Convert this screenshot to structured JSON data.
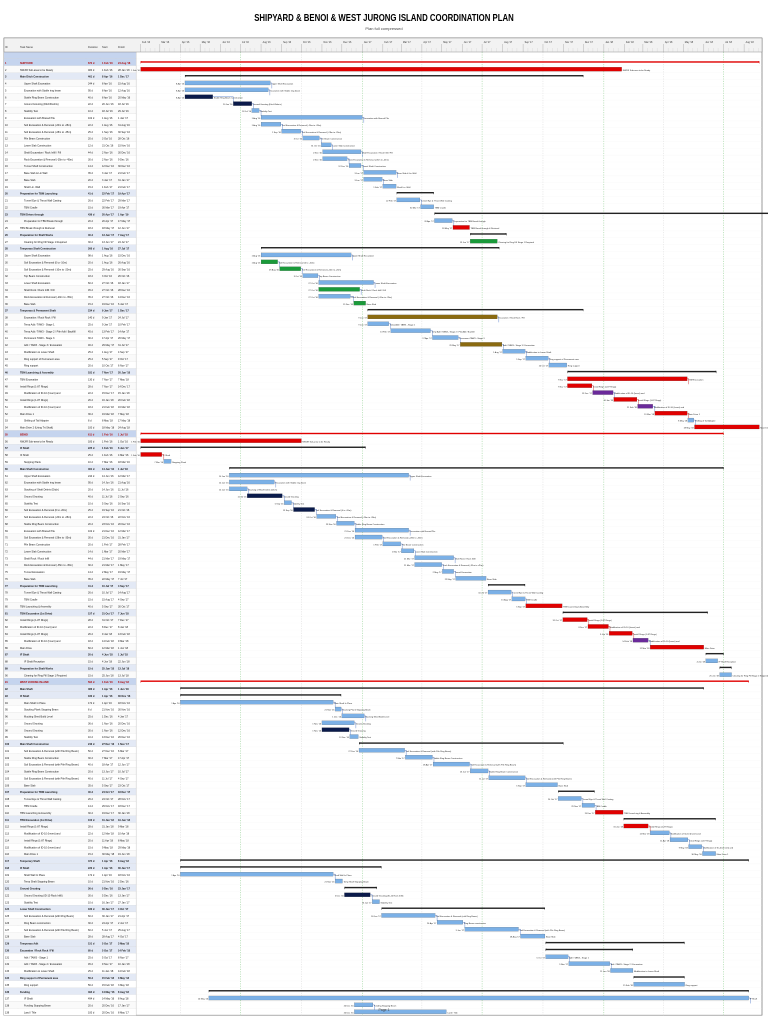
{
  "title": "SHIPYARD & BENOI & WEST JURONG ISLAND COORDINATION PLAN",
  "subtitle": "Plan full compressed",
  "footer": "Page 1",
  "header_labels": {
    "id": "ID",
    "task": "Task Name",
    "dur": "Duration",
    "start": "Start",
    "finish": "Finish"
  },
  "colors": {
    "critical": "#e00000",
    "normal": "#7bb0e6",
    "dark": "#0a1a4a",
    "green": "#1a9a3a",
    "purple": "#6a2a9a",
    "olive": "#8a6a10",
    "summary": "#c5d4ee",
    "link": "#c00000"
  },
  "tasks": [
    [
      "",
      "",
      "",
      "",
      "",
      "section"
    ],
    [
      "1",
      "SHIPYARD",
      "672 d",
      "1 Feb '16",
      "24 Aug '18",
      "section"
    ],
    [
      "2",
      "NWJIR Sub-area to be Ready",
      "484 d",
      "1 Feb '16",
      "28 Jan '18",
      "crit"
    ],
    [
      "3",
      "Main Ditch Construction",
      "461 d",
      "8 Apr '16",
      "1 Dec '17",
      "summary"
    ],
    [
      "4",
      "Upper Shaft Excavation",
      "244 d",
      "8 Apr '16",
      "15 Aug '16",
      "task"
    ],
    [
      "5",
      "Excavation with Stable ring beam",
      "95 d",
      "8 Apr '16",
      "12 Aug '16",
      "task"
    ],
    [
      "6",
      "Stable Ring Beam Construction",
      "40 d",
      "8 Apr '16",
      "20 May '16",
      "dark"
    ],
    [
      "7",
      "Ground Grouting (Ditch/Debris)",
      "22 d",
      "20 Jun '16",
      "18 Jul '16",
      "dark"
    ],
    [
      "8",
      "Stability Test",
      "10 d",
      "18 Jul '16",
      "29 Jul '16",
      "task"
    ],
    [
      "9",
      "Excavation with Braced Pile",
      "102 d",
      "1 Aug '16",
      "1 Jan '17",
      "task"
    ],
    [
      "10",
      "Soil Excavation & Removal (-20m to -28m)",
      "22 d",
      "1 Aug '16",
      "31 Aug '16",
      "task"
    ],
    [
      "11",
      "Soil Excavation & Removal (-28m to -35m)",
      "25 d",
      "1 Sep '16",
      "30 Sep '16",
      "task"
    ],
    [
      "12",
      "Pile Beam Construction",
      "20 d",
      "3 Oct '16",
      "28 Oct '16",
      "task"
    ],
    [
      "13",
      "Lower Slab Construction",
      "12 d",
      "31 Oct '16",
      "15 Nov '16",
      "task"
    ],
    [
      "14",
      "Shaft Excavation / Rock Infill / Fill",
      "44 d",
      "2 Nov '16",
      "30 Dec '16",
      "task"
    ],
    [
      "15",
      "Rock Excavation & Removal (-35m to -45m)",
      "30 d",
      "2 Nov '16",
      "9 Dec '16",
      "task"
    ],
    [
      "16",
      "Tunnel Shaft Construction",
      "14 d",
      "12 Dec '16",
      "30 Dec '16",
      "task"
    ],
    [
      "17",
      "Base Slab & Lin Wall",
      "35 d",
      "3 Jan '17",
      "21 Feb '17",
      "task"
    ],
    [
      "18",
      "Base Slab",
      "20 d",
      "3 Jan '17",
      "31 Jan '17",
      "task"
    ],
    [
      "19",
      "Shaft Lin. Wall",
      "15 d",
      "1 Feb '17",
      "21 Feb '17",
      "task"
    ],
    [
      "20",
      "Preparation for TBM Launching",
      "41 d",
      "22 Feb '17",
      "19 Apr '17",
      "summary"
    ],
    [
      "21",
      "Tunnel Eye & Thrust Wall Casting",
      "26 d",
      "22 Feb '17",
      "29 Mar '17",
      "task"
    ],
    [
      "22",
      "TBM Cradle",
      "15 d",
      "30 Mar '17",
      "19 Apr '17",
      "task"
    ],
    [
      "23",
      "TBM Drives through",
      "436 d",
      "20 Apr '17",
      "1 Apr '19",
      "summary"
    ],
    [
      "24",
      "Preparation for TBM Break through",
      "20 d",
      "20 Apr '17",
      "17 May '17",
      "task"
    ],
    [
      "25",
      "TBM Break through & Retrieval",
      "18 d",
      "18 May '17",
      "12 Jun '17",
      "crit"
    ],
    [
      "26",
      "Preparation for Shaft Works",
      "40 d",
      "13 Jun '17",
      "7 Aug '17",
      "summary"
    ],
    [
      "27",
      "Clearing for Ring Fill Stage 1 Required",
      "30 d",
      "13 Jun '17",
      "24 Jul '17",
      "green"
    ],
    [
      "28",
      "Temporary Shaft Construction",
      "260 d",
      "1 Aug '16",
      "27 Jul '17",
      "summary"
    ],
    [
      "29",
      "Upper Shaft Excavation",
      "98 d",
      "1 Aug '16",
      "15 Dec '16",
      "task"
    ],
    [
      "30",
      "Soil Excavation & Removal (0 to -10m)",
      "20 d",
      "1 Aug '16",
      "26 Aug '16",
      "green"
    ],
    [
      "31",
      "Soil Excavation & Removal (-10m to -20m)",
      "25 d",
      "29 Aug '16",
      "30 Sep '16",
      "green"
    ],
    [
      "32",
      "Top Beam Construction",
      "18 d",
      "3 Oct '16",
      "26 Oct '16",
      "task"
    ],
    [
      "33",
      "Lower Shaft Excavation",
      "60 d",
      "27 Oct '16",
      "18 Jan '17",
      "task"
    ],
    [
      "34",
      "Shaft Rock / Rock Infill / Fill",
      "45 d",
      "27 Oct '16",
      "28 Dec '16",
      "green"
    ],
    [
      "35",
      "Rock Excavation & Removal (-20m to -35m)",
      "35 d",
      "27 Oct '16",
      "14 Dec '16",
      "task"
    ],
    [
      "36",
      "Base Slab",
      "15 d",
      "19 Dec '16",
      "6 Jan '17",
      "green"
    ],
    [
      "37",
      "Temporary & Permanent Shaft",
      "234 d",
      "9 Jan '17",
      "1 Dec '17",
      "summary"
    ],
    [
      "38",
      "Excavation / Rock Rock / Fill",
      "140 d",
      "9 Jan '17",
      "24 Jul '17",
      "olive"
    ],
    [
      "39",
      "Temp Adit / TAW3 - Stage 1",
      "25 d",
      "9 Jan '17",
      "10 Feb '17",
      "task"
    ],
    [
      "40",
      "Temp Adit / TAW3 - Stage 2 / Pile Adit / Backfill",
      "45 d",
      "13 Feb '17",
      "14 Apr '17",
      "task"
    ],
    [
      "41",
      "Permanent TAW3 - Stage 3",
      "30 d",
      "17 Apr '17",
      "26 May '17",
      "task"
    ],
    [
      "42",
      "Adit / TAW3 - Stage 3 / Excavation",
      "46 d",
      "29 May '17",
      "31 Jul '17",
      "olive"
    ],
    [
      "43",
      "Modification to Lower Shaft",
      "25 d",
      "1 Aug '17",
      "4 Sep '17",
      "task"
    ],
    [
      "44",
      "Ring support of Permanent area",
      "25 d",
      "5 Sep '17",
      "9 Oct '17",
      "task"
    ],
    [
      "45",
      "Ring support",
      "20 d",
      "10 Oct '17",
      "6 Nov '17",
      "task"
    ],
    [
      "46",
      "TBM Launching & Assembly",
      "181 d",
      "7 Nov '17",
      "20 Jun '18",
      "summary"
    ],
    [
      "47",
      "TBM Excavation",
      "130 d",
      "7 Nov '17",
      "7 May '18",
      "crit"
    ],
    [
      "48",
      "Install Rings (1-87 Rings)",
      "28 d",
      "7 Nov '17",
      "14 Dec '17",
      "crit"
    ],
    [
      "49",
      "Modification of ID-10 (Invert) and",
      "22 d",
      "15 Dec '17",
      "15 Jan '18",
      "purple"
    ],
    [
      "50",
      "Install Rings (1-87 Rings)",
      "26 d",
      "16 Jan '18",
      "20 Feb '18",
      "crit"
    ],
    [
      "51",
      "Modification of ID-10 (Invert) and",
      "18 d",
      "21 Feb '18",
      "16 Mar '18",
      "purple"
    ],
    [
      "52",
      "Main Drive 1",
      "36 d",
      "19 Mar '18",
      "7 May '18",
      "crit"
    ],
    [
      "53",
      "Shifting of Tail Adapter",
      "8 d",
      "8 May '18",
      "17 May '18",
      "task"
    ],
    [
      "54",
      "Main Drive 2 (Using Trt Shaft)",
      "100 d",
      "18 May '18",
      "24 Aug '18",
      "crit"
    ],
    [
      "55",
      "BENOI",
      "611 d",
      "1 Feb '16",
      "1 Jul '18",
      "section"
    ],
    [
      "56",
      "NWJIR Sub-area to be Ready",
      "183 d",
      "1 Feb '16",
      "1 Oct '16",
      "crit"
    ],
    [
      "57",
      "IF Shaft",
      "225 d",
      "1 Feb '16",
      "6 Jan '17",
      "summary"
    ],
    [
      "58",
      "IF Shaft",
      "25 d",
      "1 Feb '16",
      "4 Mar '16",
      "crit"
    ],
    [
      "59",
      "Stopping Plank",
      "10 d",
      "7 Mar '16",
      "18 Mar '16",
      "task"
    ],
    [
      "60",
      "Main Shaft Construction",
      "461 d",
      "14 Jun '16",
      "1 Jul '18",
      "summary"
    ],
    [
      "61",
      "Upper Shaft Excavation",
      "244 d",
      "14 Jun '16",
      "12 Mar '17",
      "task"
    ],
    [
      "62",
      "Excavation with Stable ring beam",
      "95 d",
      "14 Jun '16",
      "21 Aug '16",
      "task"
    ],
    [
      "63",
      "Stacking of Shaft Debris (Ditch)",
      "20 d",
      "14 Jun '16",
      "11 Jul '16",
      "task"
    ],
    [
      "64",
      "Ground Grouting",
      "40 d",
      "11 Jul '16",
      "2 Sep '16",
      "dark"
    ],
    [
      "65",
      "Stability Test",
      "10 d",
      "5 Sep '16",
      "16 Sep '16",
      "task"
    ],
    [
      "66",
      "Soil Excavation & Removal (0 to -20m)",
      "25 d",
      "19 Sep '16",
      "21 Oct '16",
      "dark"
    ],
    [
      "67",
      "Soil Excavation & Removal (-20m to -28m)",
      "22 d",
      "24 Oct '16",
      "22 Nov '16",
      "task"
    ],
    [
      "68",
      "Stable Ring Beam Construction",
      "20 d",
      "23 Nov '16",
      "20 Dec '16",
      "task"
    ],
    [
      "69",
      "Excavation with Braced Pile",
      "102 d",
      "21 Dec '16",
      "12 Mar '17",
      "task"
    ],
    [
      "70",
      "Soil Excavation & Removal (-28m to -35m)",
      "30 d",
      "21 Dec '16",
      "31 Jan '17",
      "task"
    ],
    [
      "71",
      "Pile Beam Construction",
      "20 d",
      "1 Feb '17",
      "28 Feb '17",
      "task"
    ],
    [
      "72",
      "Lower Slab Construction",
      "14 d",
      "1 Mar '17",
      "20 Mar '17",
      "task"
    ],
    [
      "73",
      "Shaft Rock / Rock Infill",
      "44 d",
      "21 Mar '17",
      "19 May '17",
      "task"
    ],
    [
      "74",
      "Rock Excavation & Removal (-35m to -45m)",
      "30 d",
      "21 Mar '17",
      "1 May '17",
      "task"
    ],
    [
      "75",
      "Tunnel Excavation",
      "14 d",
      "2 May '17",
      "19 May '17",
      "task"
    ],
    [
      "76",
      "Base Slab",
      "35 d",
      "22 May '17",
      "7 Jul '17",
      "task"
    ],
    [
      "77",
      "Preparation for TBM Launching",
      "41 d",
      "10 Jul '17",
      "4 Sep '17",
      "summary"
    ],
    [
      "78",
      "Tunnel Eye & Thrust Wall Casting",
      "26 d",
      "10 Jul '17",
      "14 Aug '17",
      "task"
    ],
    [
      "79",
      "TBM Cradle",
      "15 d",
      "15 Aug '17",
      "4 Sep '17",
      "task"
    ],
    [
      "80",
      "TBM Launching & Assembly",
      "40 d",
      "5 Sep '17",
      "30 Oct '17",
      "crit"
    ],
    [
      "81",
      "TBM Excavation (1st Drive)",
      "157 d",
      "31 Oct '17",
      "7 Jun '18",
      "summary"
    ],
    [
      "82",
      "Install Rings (1-87 Rings)",
      "28 d",
      "31 Oct '17",
      "7 Dec '17",
      "crit"
    ],
    [
      "83",
      "Modification of ID-10 (Invert) and",
      "22 d",
      "8 Dec '17",
      "8 Jan '18",
      "crit"
    ],
    [
      "84",
      "Install Rings (1-87 Rings)",
      "26 d",
      "9 Jan '18",
      "13 Feb '18",
      "crit"
    ],
    [
      "85",
      "Modification of ID-10 (Invert) and",
      "18 d",
      "14 Feb '18",
      "9 Mar '18",
      "purple"
    ],
    [
      "86",
      "Main Drive",
      "60 d",
      "12 Mar '18",
      "1 Jun '18",
      "crit"
    ],
    [
      "87",
      "IF Shaft",
      "20 d",
      "4 Jun '18",
      "1 Jul '18",
      "summary"
    ],
    [
      "88",
      "IF Shaft Reception",
      "15 d",
      "4 Jun '18",
      "22 Jun '18",
      "task"
    ],
    [
      "89",
      "Preparation for Shaft Works",
      "15 d",
      "25 Jun '18",
      "13 Jul '18",
      "summary"
    ],
    [
      "90",
      "Clearing for Ring Fill Stage 1 Required",
      "15 d",
      "25 Jun '18",
      "13 Jul '18",
      "task"
    ],
    [
      "91",
      "WEST JURONG ISLAND",
      "594 d",
      "1 Feb '16",
      "8 Aug '18",
      "section"
    ],
    [
      "92",
      "Main Shaft",
      "486 d",
      "1 Apr '16",
      "1 Jun '18",
      "summary"
    ],
    [
      "93",
      "IF Shaft",
      "180 d",
      "1 Apr '16",
      "30 Nov '16",
      "summary"
    ],
    [
      "94",
      "Main Shaft In Place",
      "172 d",
      "1 Apr '16",
      "18 Nov '16",
      "task"
    ],
    [
      "95",
      "Stacking Plank Stopping Beam",
      "8 d",
      "21 Nov '16",
      "30 Nov '16",
      "task"
    ],
    [
      "96",
      "Mucking Shed Build Level",
      "25 d",
      "1 Dec '16",
      "4 Jan '17",
      "task"
    ],
    [
      "97",
      "Ground Grouting",
      "36 d",
      "1 Nov '16",
      "20 Dec '16",
      "task"
    ],
    [
      "98",
      "Ground Grouting",
      "30 d",
      "1 Nov '16",
      "12 Dec '16",
      "dark"
    ],
    [
      "99",
      "Stability Test",
      "10 d",
      "13 Dec '16",
      "26 Dec '16",
      "task"
    ],
    [
      "100",
      "Main Shaft Construction",
      "243 d",
      "27 Dec '16",
      "1 Nov '17",
      "summary"
    ],
    [
      "101",
      "Soil Excavation & Removal (with Pile Ring Beam)",
      "50 d",
      "27 Dec '16",
      "6 Mar '17",
      "task"
    ],
    [
      "102",
      "Stable Ring Beam Construction",
      "30 d",
      "7 Mar '17",
      "17 Apr '17",
      "task"
    ],
    [
      "103",
      "Soil Excavation & Removal (with Pile Ring Beam)",
      "40 d",
      "18 Apr '17",
      "12 Jun '17",
      "task"
    ],
    [
      "104",
      "Stable Ring Beam Construction",
      "20 d",
      "13 Jun '17",
      "10 Jul '17",
      "task"
    ],
    [
      "105",
      "Soil Excavation & Removal (with Pile Ring Beam)",
      "40 d",
      "11 Jul '17",
      "4 Sep '17",
      "task"
    ],
    [
      "106",
      "Base Slab",
      "35 d",
      "5 Sep '17",
      "23 Oct '17",
      "task"
    ],
    [
      "107",
      "Preparation for TBM Launching",
      "40 d",
      "24 Oct '17",
      "18 Dec '17",
      "summary"
    ],
    [
      "108",
      "Tunnel Eye & Thrust Wall Casting",
      "26 d",
      "24 Oct '17",
      "28 Nov '17",
      "task"
    ],
    [
      "109",
      "TBM Cradle",
      "14 d",
      "29 Nov '17",
      "18 Dec '17",
      "task"
    ],
    [
      "110",
      "TBM Launching & Assembly",
      "30 d",
      "19 Dec '17",
      "30 Jan '18",
      "crit"
    ],
    [
      "111",
      "TBM Excavation (1st Drive)",
      "100 d",
      "31 Jan '18",
      "19 Jun '18",
      "summary"
    ],
    [
      "112",
      "Install Rings (1-87 Rings)",
      "28 d",
      "31 Jan '18",
      "9 Mar '18",
      "crit"
    ],
    [
      "113",
      "Modification of ID-10 (Invert) and",
      "22 d",
      "12 Mar '18",
      "10 Apr '18",
      "task"
    ],
    [
      "114",
      "Install Rings (1-87 Rings)",
      "20 d",
      "11 Apr '18",
      "8 May '18",
      "task"
    ],
    [
      "115",
      "Modification of ID-10 (Invert) and",
      "15 d",
      "9 May '18",
      "29 May '18",
      "task"
    ],
    [
      "116",
      "Main Drive 1",
      "15 d",
      "30 May '18",
      "19 Jun '18",
      "task"
    ],
    [
      "117",
      "Temporary Shaft",
      "474 d",
      "1 Apr '16",
      "8 Aug '18",
      "summary"
    ],
    [
      "118",
      "IF Shaft",
      "220 d",
      "1 Apr '16",
      "30 Jan '17",
      "summary"
    ],
    [
      "119",
      "Shaft Wall In Place",
      "172 d",
      "1 Apr '16",
      "18 Nov '16",
      "task"
    ],
    [
      "120",
      "Temp Shaft Stopping Beam",
      "10 d",
      "21 Nov '16",
      "2 Dec '16",
      "task"
    ],
    [
      "121",
      "Ground Grouting",
      "36 d",
      "5 Dec '16",
      "23 Jan '17",
      "summary"
    ],
    [
      "122",
      "Ground Grouting (ID-10 Rock Infill)",
      "30 d",
      "5 Dec '16",
      "13 Jan '17",
      "dark"
    ],
    [
      "123",
      "Stability Test",
      "10 d",
      "16 Jan '17",
      "27 Jan '17",
      "task"
    ],
    [
      "124",
      "Lower Shaft Construction",
      "180 d",
      "30 Jan '17",
      "4 Oct '17",
      "summary"
    ],
    [
      "125",
      "Soil Excavation & Removal (with Ring Beam)",
      "60 d",
      "30 Jan '17",
      "21 Apr '17",
      "task"
    ],
    [
      "126",
      "Ring Beam construction",
      "30 d",
      "24 Apr '17",
      "2 Jun '17",
      "task"
    ],
    [
      "127",
      "Soil Excavation & Removal (with Pile Ring Beam)",
      "60 d",
      "5 Jun '17",
      "25 Aug '17",
      "task"
    ],
    [
      "128",
      "Base Slab",
      "28 d",
      "28 Aug '17",
      "4 Oct '17",
      "task"
    ],
    [
      "129",
      "Temporary Adit",
      "151 d",
      "5 Oct '17",
      "3 May '18",
      "summary"
    ],
    [
      "130",
      "Excavation / Rock Rock / Fill",
      "95 d",
      "5 Oct '17",
      "14 Feb '18",
      "summary"
    ],
    [
      "131",
      "Adit / TAW3 - Stage 1",
      "25 d",
      "5 Oct '17",
      "8 Nov '17",
      "task"
    ],
    [
      "132",
      "Adit / TAW3 - Stage 2 / Excavation",
      "45 d",
      "9 Nov '17",
      "10 Jan '18",
      "task"
    ],
    [
      "133",
      "Modification to Lower Shaft",
      "25 d",
      "11 Jan '18",
      "14 Feb '18",
      "task"
    ],
    [
      "134",
      "Ring support of Permanent area",
      "56 d",
      "15 Feb '18",
      "3 May '18",
      "summary"
    ],
    [
      "135",
      "Ring support",
      "56 d",
      "15 Feb '18",
      "3 May '18",
      "task"
    ],
    [
      "136",
      "Funding",
      "494 d",
      "14 May '16",
      "8 Aug '18",
      "summary"
    ],
    [
      "137",
      "IF Shaft",
      "494 d",
      "14 May '16",
      "8 Aug '18",
      "task"
    ],
    [
      "138",
      "Funding Stopping Beam",
      "20 d",
      "20 Dec '16",
      "17 Jan '17",
      "task"
    ],
    [
      "139",
      "Land / Title",
      "100 d",
      "20 Dec '16",
      "8 May '17",
      "task"
    ]
  ],
  "timeline": {
    "start": "2016-01-25",
    "end": "2018-08-28",
    "months": [
      "Jan '16",
      "Feb '16",
      "Mar '16",
      "Apr '16",
      "May '16",
      "Jun '16",
      "Jul '16",
      "Aug '16",
      "Sep '16",
      "Oct '16",
      "Nov '16",
      "Dec '16",
      "Jan '17",
      "Feb '17",
      "Mar '17",
      "Apr '17",
      "May '17",
      "Jun '17",
      "Jul '17",
      "Aug '17",
      "Sep '17",
      "Oct '17",
      "Nov '17",
      "Dec '17",
      "Jan '18",
      "Feb '18",
      "Mar '18",
      "Apr '18",
      "May '18",
      "Jun '18",
      "Jul '18",
      "Aug '18"
    ]
  }
}
